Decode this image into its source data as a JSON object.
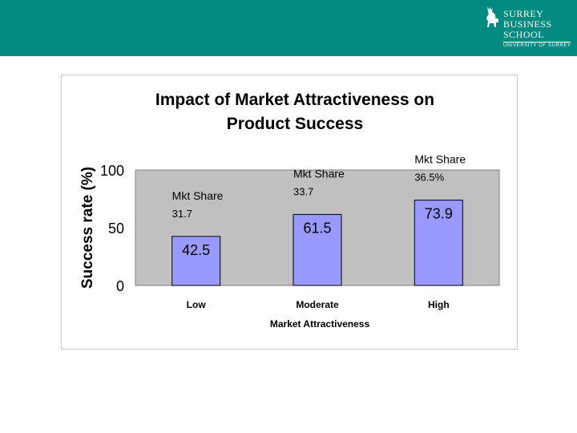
{
  "header": {
    "logo": {
      "line1": "SURREY",
      "line2": "BUSINESS",
      "line3": "SCHOOL",
      "sub": "UNIVERSITY OF SURREY"
    }
  },
  "colors": {
    "header": "#008a80",
    "plot_area": "#c0c0c0",
    "bar_fill": "#9999ff",
    "bar_stroke": "#000000"
  },
  "chart_data": {
    "type": "bar",
    "title_lines": [
      "Impact of Market Attractiveness on",
      "Product Success"
    ],
    "xlabel": "Market Attractiveness",
    "ylabel": "Success rate (%)",
    "ylim": [
      0,
      100
    ],
    "yticks": [
      0,
      50,
      100
    ],
    "categories": [
      "Low",
      "Moderate",
      "High"
    ],
    "values": [
      42.5,
      61.5,
      73.9
    ],
    "value_labels": [
      "42.5",
      "61.5",
      "73.9"
    ],
    "annotations": [
      {
        "line1": "Mkt Share",
        "line2": "31.7"
      },
      {
        "line1": "Mkt Share",
        "line2": "33.7"
      },
      {
        "line1": "Mkt Share",
        "line2": "36.5%"
      }
    ],
    "grid": false,
    "legend": "none"
  }
}
